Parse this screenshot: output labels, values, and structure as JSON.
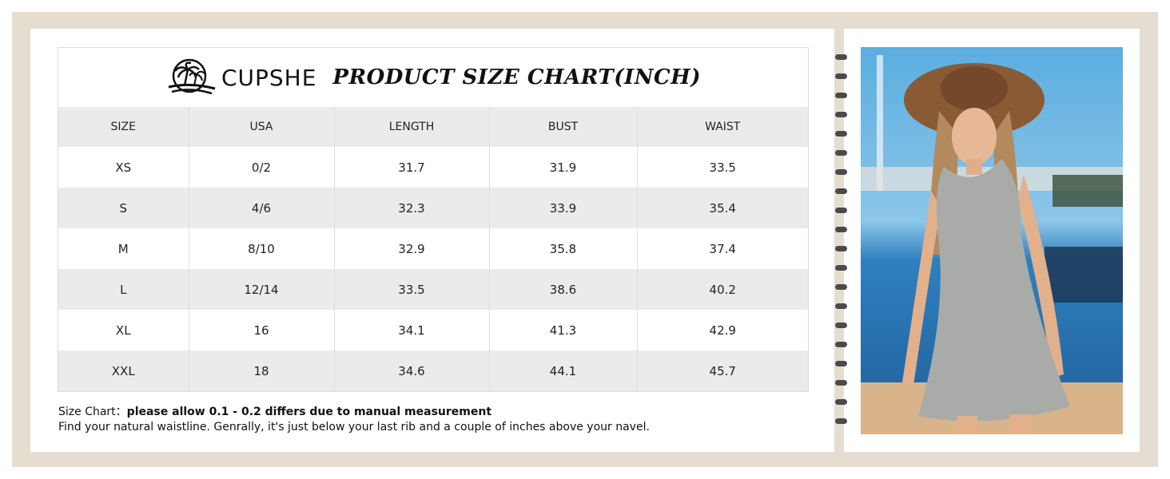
{
  "brand": {
    "name": "CUPSHE",
    "logo_icon": "palm-island-logo-icon"
  },
  "title": "PRODUCT SIZE CHART(INCH)",
  "table": {
    "headers": [
      "SIZE",
      "USA",
      "LENGTH",
      "BUST",
      "WAIST"
    ],
    "rows": [
      [
        "XS",
        "0/2",
        "31.7",
        "31.9",
        "33.5"
      ],
      [
        "S",
        "4/6",
        "32.3",
        "33.9",
        "35.4"
      ],
      [
        "M",
        "8/10",
        "32.9",
        "35.8",
        "37.4"
      ],
      [
        "L",
        "12/14",
        "33.5",
        "38.6",
        "40.2"
      ],
      [
        "XL",
        "16",
        "34.1",
        "41.3",
        "42.9"
      ],
      [
        "XXL",
        "18",
        "34.6",
        "44.1",
        "45.7"
      ]
    ]
  },
  "notes": {
    "prefix": "Size Chart：",
    "line1": "please allow 0.1  - 0.2  differs due to manual measurement",
    "line2": "Find your natural waistline. Genrally, it's just below your last rib and a couple of inches above your navel."
  },
  "colors": {
    "frame": "#e4ddd0",
    "row_alt": "#ebebeb",
    "sky": "#3f9ad6"
  }
}
